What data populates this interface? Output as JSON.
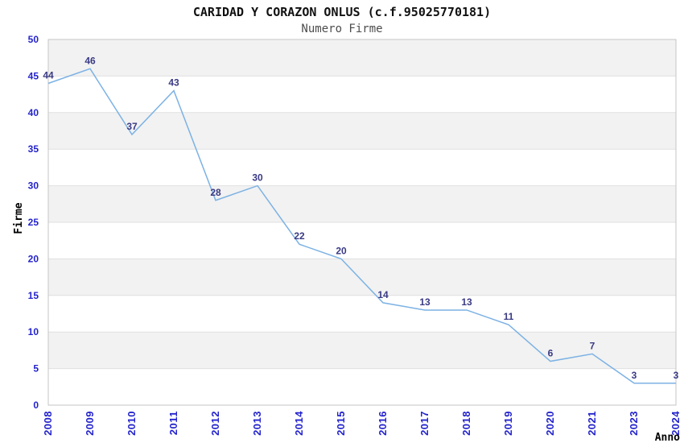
{
  "title": "CARIDAD Y CORAZON ONLUS (c.f.95025770181)",
  "subtitle": "Numero Firme",
  "chart_data": {
    "type": "line",
    "title": "CARIDAD Y CORAZON ONLUS (c.f.95025770181)",
    "subtitle": "Numero Firme",
    "categories": [
      "2008",
      "2009",
      "2010",
      "2011",
      "2012",
      "2013",
      "2014",
      "2015",
      "2016",
      "2017",
      "2018",
      "2019",
      "2020",
      "2021",
      "2023",
      "2024"
    ],
    "values": [
      44,
      46,
      37,
      43,
      28,
      30,
      22,
      20,
      14,
      13,
      13,
      11,
      6,
      7,
      3,
      3
    ],
    "xlabel": "Anno",
    "ylabel": "Firme",
    "ylim": [
      0,
      50
    ],
    "yticks": [
      0,
      5,
      10,
      15,
      20,
      25,
      30,
      35,
      40,
      45,
      50
    ],
    "grid": true,
    "legend": false,
    "data_labels": true,
    "colors": {
      "line": "#7cb2e4",
      "tick_label": "#2323cc",
      "value_label": "#3a3a85",
      "band_gray": "#f2f2f2",
      "band_white": "#ffffff",
      "gridline": "#e0e0e0",
      "plot_border": "#c6c6c6",
      "title": "#111111",
      "subtitle": "#4d4d4d",
      "axis_title": "#000000",
      "background": "#ffffff"
    }
  }
}
